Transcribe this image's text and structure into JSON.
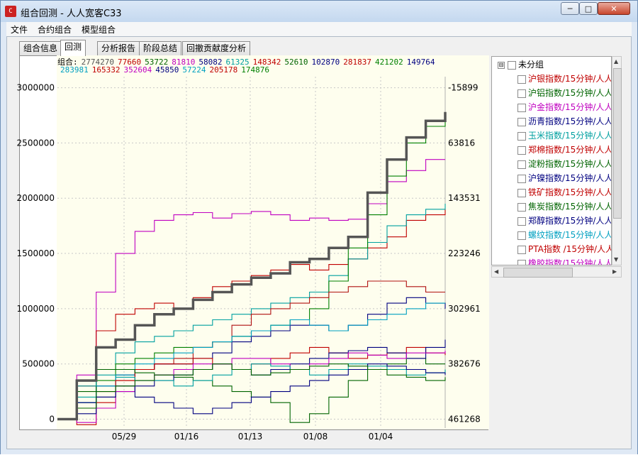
{
  "window": {
    "title": "组合回测 - 人人宽客C33",
    "icon_name": "app-logo-icon",
    "minimize_label": "─",
    "maximize_label": "□",
    "close_label": "✕"
  },
  "menu": [
    "文件",
    "合约组合",
    "模型组合"
  ],
  "tabs": [
    {
      "label": "组合信息",
      "active": false
    },
    {
      "label": "回测",
      "active": true
    },
    {
      "label": "分析报告",
      "active": false
    },
    {
      "label": "阶段总结",
      "active": false
    },
    {
      "label": "回撤贡献度分析",
      "active": false
    }
  ],
  "legend": {
    "prefix": "组合:",
    "row1": [
      {
        "text": "2774270",
        "color": "#555555"
      },
      {
        "text": "77660",
        "color": "#c00000"
      },
      {
        "text": "53722",
        "color": "#006400"
      },
      {
        "text": "81810",
        "color": "#c000c0"
      },
      {
        "text": "58082",
        "color": "#000080"
      },
      {
        "text": "61325",
        "color": "#00a0a0"
      },
      {
        "text": "148342",
        "color": "#c00000"
      },
      {
        "text": "52610",
        "color": "#006400"
      },
      {
        "text": "102870",
        "color": "#000080"
      },
      {
        "text": "281837",
        "color": "#c00000"
      },
      {
        "text": "421202",
        "color": "#008000"
      },
      {
        "text": "149764",
        "color": "#000080"
      }
    ],
    "row2": [
      {
        "text": "283981",
        "color": "#00a0c0"
      },
      {
        "text": "165332",
        "color": "#c00000"
      },
      {
        "text": "352604",
        "color": "#c000c0"
      },
      {
        "text": "45850",
        "color": "#000080"
      },
      {
        "text": "57224",
        "color": "#00a0c0"
      },
      {
        "text": "205178",
        "color": "#c00000"
      },
      {
        "text": "174876",
        "color": "#008000"
      }
    ]
  },
  "tree": {
    "root_label": "未分组",
    "expander": "⊟",
    "items": [
      {
        "label": "沪银指数/15分钟/人人",
        "color": "#c00000"
      },
      {
        "label": "沪铝指数/15分钟/人人",
        "color": "#006400"
      },
      {
        "label": "沪金指数/15分钟/人人",
        "color": "#c000c0"
      },
      {
        "label": "沥青指数/15分钟/人人",
        "color": "#000080"
      },
      {
        "label": "玉米指数/15分钟/人人",
        "color": "#00a0a0"
      },
      {
        "label": "郑棉指数/15分钟/人人",
        "color": "#c00000"
      },
      {
        "label": "淀粉指数/15分钟/人人",
        "color": "#006400"
      },
      {
        "label": "沪镍指数/15分钟/人人",
        "color": "#000080"
      },
      {
        "label": "铁矿指数/15分钟/人人",
        "color": "#c00000"
      },
      {
        "label": "焦炭指数/15分钟/人人",
        "color": "#006400"
      },
      {
        "label": "郑醇指数/15分钟/人人",
        "color": "#000080"
      },
      {
        "label": "螺纹指数/15分钟/人人",
        "color": "#00a0c0"
      },
      {
        "label": "PTA指数 /15分钟/人人",
        "color": "#c00000"
      },
      {
        "label": "橡胶指数/15分钟/人人",
        "color": "#c000c0"
      }
    ]
  },
  "chart_data": {
    "type": "line",
    "title": "",
    "xlabel": "",
    "ylabel": "",
    "x_ticks": [
      "05/29",
      "01/16",
      "01/13",
      "01/08",
      "01/04"
    ],
    "left_axis": {
      "ticks": [
        0,
        500000,
        1000000,
        1500000,
        2000000,
        2500000,
        3000000
      ],
      "ylim": [
        -80000,
        3100000
      ]
    },
    "right_axis": {
      "ticks": [
        "461268",
        "382676",
        "302961",
        "223246",
        "143531",
        "63816",
        "-15899"
      ]
    },
    "grid": true,
    "legend_placement": "top",
    "x": [
      0,
      5,
      10,
      15,
      20,
      25,
      30,
      35,
      40,
      45,
      50,
      55,
      60,
      65,
      70,
      75,
      80,
      85,
      90,
      95,
      100
    ],
    "series": [
      {
        "color": "#555555",
        "values": [
          0,
          350000,
          650000,
          720000,
          850000,
          950000,
          1000000,
          1080000,
          1150000,
          1220000,
          1280000,
          1320000,
          1420000,
          1450000,
          1550000,
          1650000,
          2050000,
          2350000,
          2550000,
          2700000,
          2780000
        ]
      },
      {
        "color": "#c000c0",
        "values": [
          0,
          400000,
          1150000,
          1500000,
          1700000,
          1800000,
          1850000,
          1870000,
          1820000,
          1860000,
          1880000,
          1850000,
          1800000,
          1820000,
          1800000,
          1810000,
          1950000,
          2150000,
          2250000,
          2350000,
          2350000
        ]
      },
      {
        "color": "#c00000",
        "values": [
          0,
          300000,
          800000,
          950000,
          1000000,
          1050000,
          1000000,
          1100000,
          1200000,
          1250000,
          1300000,
          1350000,
          1400000,
          1350000,
          1400000,
          1450000,
          1550000,
          1650000,
          1800000,
          1850000,
          1900000
        ]
      },
      {
        "color": "#00a0a0",
        "values": [
          0,
          200000,
          450000,
          600000,
          700000,
          750000,
          800000,
          850000,
          900000,
          950000,
          1000000,
          1050000,
          1100000,
          1150000,
          1300000,
          1450000,
          1600000,
          1750000,
          1850000,
          1900000,
          1950000
        ]
      },
      {
        "color": "#008000",
        "values": [
          0,
          150000,
          350000,
          500000,
          550000,
          600000,
          650000,
          650000,
          700000,
          750000,
          800000,
          850000,
          900000,
          1000000,
          1250000,
          1550000,
          1850000,
          2200000,
          2500000,
          2650000,
          2750000
        ]
      },
      {
        "color": "#b01010",
        "values": [
          0,
          100000,
          250000,
          350000,
          450000,
          500000,
          550000,
          650000,
          700000,
          850000,
          950000,
          1000000,
          1050000,
          1100000,
          1150000,
          1200000,
          1250000,
          1250000,
          1200000,
          1150000,
          1150000
        ]
      },
      {
        "color": "#000080",
        "values": [
          0,
          100000,
          300000,
          400000,
          450000,
          500000,
          500000,
          550000,
          600000,
          700000,
          750000,
          800000,
          850000,
          850000,
          800000,
          850000,
          950000,
          1050000,
          1100000,
          1050000,
          1000000
        ]
      },
      {
        "color": "#00a0c0",
        "values": [
          0,
          150000,
          300000,
          400000,
          500000,
          550000,
          600000,
          650000,
          700000,
          750000,
          800000,
          850000,
          900000,
          850000,
          800000,
          850000,
          900000,
          950000,
          1000000,
          1050000,
          1050000
        ]
      },
      {
        "color": "#c00000",
        "values": [
          0,
          -50000,
          150000,
          350000,
          450000,
          500000,
          500000,
          550000,
          500000,
          450000,
          500000,
          550000,
          600000,
          650000,
          600000,
          550000,
          580000,
          600000,
          650000,
          600000,
          580000
        ]
      },
      {
        "color": "#006400",
        "values": [
          0,
          250000,
          450000,
          450000,
          420000,
          400000,
          380000,
          350000,
          300000,
          250000,
          200000,
          150000,
          -30000,
          50000,
          200000,
          350000,
          450000,
          500000,
          550000,
          500000,
          500000
        ]
      },
      {
        "color": "#000080",
        "values": [
          0,
          150000,
          200000,
          250000,
          300000,
          350000,
          400000,
          450000,
          500000,
          450000,
          400000,
          450000,
          500000,
          550000,
          600000,
          620000,
          650000,
          600000,
          550000,
          650000,
          720000
        ]
      },
      {
        "color": "#c000c0",
        "values": [
          0,
          -30000,
          100000,
          250000,
          350000,
          400000,
          450000,
          500000,
          500000,
          550000,
          550000,
          500000,
          450000,
          500000,
          550000,
          600000,
          580000,
          550000,
          600000,
          600000,
          620000
        ]
      },
      {
        "color": "#00a0a0",
        "values": [
          0,
          300000,
          400000,
          380000,
          350000,
          350000,
          300000,
          350000,
          400000,
          450000,
          500000,
          480000,
          450000,
          400000,
          450000,
          500000,
          480000,
          450000,
          400000,
          420000,
          450000
        ]
      },
      {
        "color": "#000080",
        "values": [
          0,
          50000,
          200000,
          300000,
          200000,
          150000,
          100000,
          50000,
          100000,
          150000,
          200000,
          250000,
          300000,
          350000,
          400000,
          450000,
          500000,
          480000,
          450000,
          420000,
          400000
        ]
      },
      {
        "color": "#006400",
        "values": [
          0,
          100000,
          250000,
          300000,
          350000,
          400000,
          400000,
          450000,
          500000,
          450000,
          400000,
          420000,
          450000,
          480000,
          500000,
          480000,
          450000,
          400000,
          380000,
          350000,
          380000
        ]
      }
    ]
  }
}
